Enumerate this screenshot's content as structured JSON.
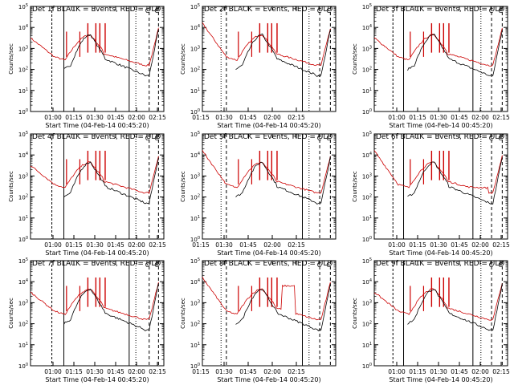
{
  "chart_data": [
    {
      "type": "line",
      "title": "Det 1f BLACK = Events, RED = ULD",
      "xlabel": "Start Time (04-Feb-14 00:45:20)",
      "ylabel": "Counts/sec",
      "x_ticks": [
        "01:00",
        "01:15",
        "01:30",
        "01:45",
        "02:00",
        "02:15"
      ],
      "y_ticks": [
        "10^0",
        "10^1",
        "10^2",
        "10^3",
        "10^4",
        "10^5"
      ],
      "yscale": "log",
      "ylim": [
        1,
        100000
      ],
      "series": [
        {
          "name": "Events",
          "color": "#000000"
        },
        {
          "name": "ULD",
          "color": "#cc0000"
        }
      ]
    },
    {
      "type": "line",
      "title": "Det 2f BLACK = Events, RED = ULD",
      "xlabel": "Start Time (04-Feb-14 00:45:20)",
      "ylabel": "Counts/sec",
      "x_ticks": [
        "01:30",
        "01:45",
        "02:00",
        "02:15"
      ],
      "x_ticks_left": [
        "01:15"
      ],
      "y_ticks": [
        "10^0",
        "10^1",
        "10^2",
        "10^3",
        "10^4",
        "10^5"
      ],
      "yscale": "log",
      "ylim": [
        1,
        100000
      ],
      "series": [
        {
          "name": "Events",
          "color": "#000000"
        },
        {
          "name": "ULD",
          "color": "#cc0000"
        }
      ]
    },
    {
      "type": "line",
      "title": "Det 3f BLACK = Events, RED = ULD",
      "xlabel": "Start Time (04-Feb-14 00:45:20)",
      "ylabel": "Counts/sec",
      "x_ticks": [
        "01:00",
        "01:15",
        "01:30",
        "01:45",
        "02:00",
        "02:15"
      ],
      "y_ticks": [
        "10^0",
        "10^1",
        "10^2",
        "10^3",
        "10^4",
        "10^5"
      ],
      "yscale": "log",
      "ylim": [
        1,
        100000
      ],
      "series": [
        {
          "name": "Events",
          "color": "#000000"
        },
        {
          "name": "ULD",
          "color": "#cc0000"
        }
      ]
    },
    {
      "type": "line",
      "title": "Det 4f BLACK = Events, RED = ULD",
      "xlabel": "Start Time (04-Feb-14 00:45:20)",
      "ylabel": "Counts/sec",
      "x_ticks": [
        "01:00",
        "01:15",
        "01:30",
        "01:45",
        "02:00",
        "02:15"
      ],
      "y_ticks": [
        "10^0",
        "10^1",
        "10^2",
        "10^3",
        "10^4",
        "10^5"
      ],
      "yscale": "log",
      "ylim": [
        1,
        100000
      ],
      "series": [
        {
          "name": "Events",
          "color": "#000000"
        },
        {
          "name": "ULD",
          "color": "#cc0000"
        }
      ]
    },
    {
      "type": "line",
      "title": "Det 5f BLACK = Events, RED = ULD",
      "xlabel": "Start Time (04-Feb-14 00:45:20)",
      "ylabel": "Counts/sec",
      "x_ticks": [
        "01:30",
        "01:45",
        "02:00",
        "02:15"
      ],
      "x_ticks_left": [
        "01:15"
      ],
      "y_ticks": [
        "10^0",
        "10^1",
        "10^2",
        "10^3",
        "10^4",
        "10^5"
      ],
      "yscale": "log",
      "ylim": [
        1,
        100000
      ],
      "series": [
        {
          "name": "Events",
          "color": "#000000"
        },
        {
          "name": "ULD",
          "color": "#cc0000"
        }
      ]
    },
    {
      "type": "line",
      "title": "Det 6f BLACK = Events, RED = ULD",
      "xlabel": "Start Time (04-Feb-14 00:45:20)",
      "ylabel": "Counts/sec",
      "x_ticks": [
        "01:00",
        "01:15",
        "01:30",
        "01:45",
        "02:00",
        "02:15"
      ],
      "y_ticks": [
        "10^0",
        "10^1",
        "10^2",
        "10^3",
        "10^4",
        "10^5"
      ],
      "yscale": "log",
      "ylim": [
        1,
        100000
      ],
      "series": [
        {
          "name": "Events",
          "color": "#000000"
        },
        {
          "name": "ULD",
          "color": "#cc0000"
        }
      ]
    },
    {
      "type": "line",
      "title": "Det 7f BLACK = Events, RED = ULD",
      "xlabel": "Start Time (04-Feb-14 00:45:20)",
      "ylabel": "Counts/sec",
      "x_ticks": [
        "01:00",
        "01:15",
        "01:30",
        "01:45",
        "02:00",
        "02:15"
      ],
      "y_ticks": [
        "10^0",
        "10^1",
        "10^2",
        "10^3",
        "10^4",
        "10^5"
      ],
      "yscale": "log",
      "ylim": [
        1,
        100000
      ],
      "series": [
        {
          "name": "Events",
          "color": "#000000"
        },
        {
          "name": "ULD",
          "color": "#cc0000"
        }
      ]
    },
    {
      "type": "line",
      "title": "Det 8f BLACK = Events, RED = ULD",
      "xlabel": "Start Time (04-Feb-14 00:45:20)",
      "ylabel": "Counts/sec",
      "x_ticks": [
        "01:30",
        "01:45",
        "02:00",
        "02:15"
      ],
      "x_ticks_left": [
        "01:15"
      ],
      "y_ticks": [
        "10^0",
        "10^1",
        "10^2",
        "10^3",
        "10^4",
        "10^5"
      ],
      "yscale": "log",
      "ylim": [
        1,
        100000
      ],
      "series": [
        {
          "name": "Events",
          "color": "#000000"
        },
        {
          "name": "ULD",
          "color": "#cc0000"
        }
      ]
    },
    {
      "type": "line",
      "title": "Det 9f BLACK = Events, RED = ULD",
      "xlabel": "Start Time (04-Feb-14 00:45:20)",
      "ylabel": "Counts/sec",
      "x_ticks": [
        "01:00",
        "01:15",
        "01:30",
        "01:45",
        "02:00",
        "02:15"
      ],
      "y_ticks": [
        "10^0",
        "10^1",
        "10^2",
        "10^3",
        "10^4",
        "10^5"
      ],
      "yscale": "log",
      "ylim": [
        1,
        100000
      ],
      "series": [
        {
          "name": "Events",
          "color": "#000000"
        },
        {
          "name": "ULD",
          "color": "#cc0000"
        }
      ]
    }
  ]
}
